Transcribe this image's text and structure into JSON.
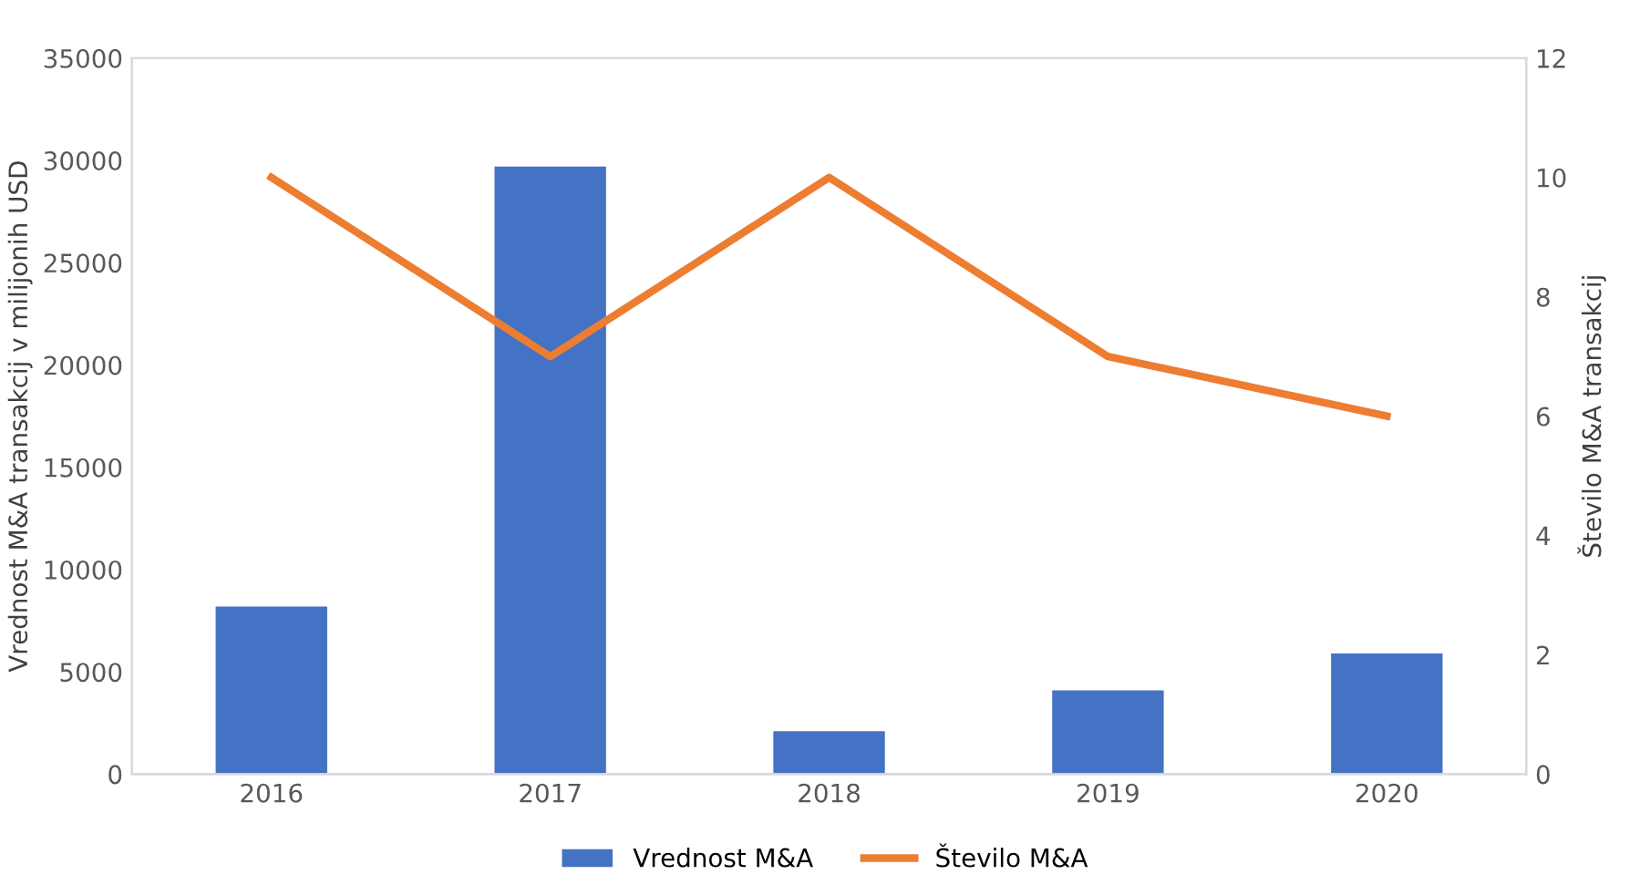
{
  "chart_data": {
    "type": "bar",
    "categories": [
      "2016",
      "2017",
      "2018",
      "2019",
      "2020"
    ],
    "ylabel": "Vrednost M&A transakcij v milijonih USD",
    "y2label": "Število M&A transakcij",
    "series": [
      {
        "name": "Vrednost M&A",
        "color": "#4472c4",
        "values": [
          8200,
          29700,
          2100,
          4100,
          5900
        ]
      },
      {
        "name": "Število M&A",
        "type": "line",
        "axis": "y2",
        "color": "#ed7d31",
        "values": [
          10,
          7,
          10,
          7,
          6
        ]
      }
    ],
    "ylim": [
      0,
      35000
    ],
    "yticks": [
      0,
      5000,
      10000,
      15000,
      20000,
      25000,
      30000,
      35000
    ],
    "y2lim": [
      0,
      12
    ],
    "y2ticks": [
      0,
      2,
      4,
      6,
      8,
      10,
      12
    ],
    "grid": false,
    "legend": "bottom",
    "marker": "none",
    "line_style": "solid"
  }
}
